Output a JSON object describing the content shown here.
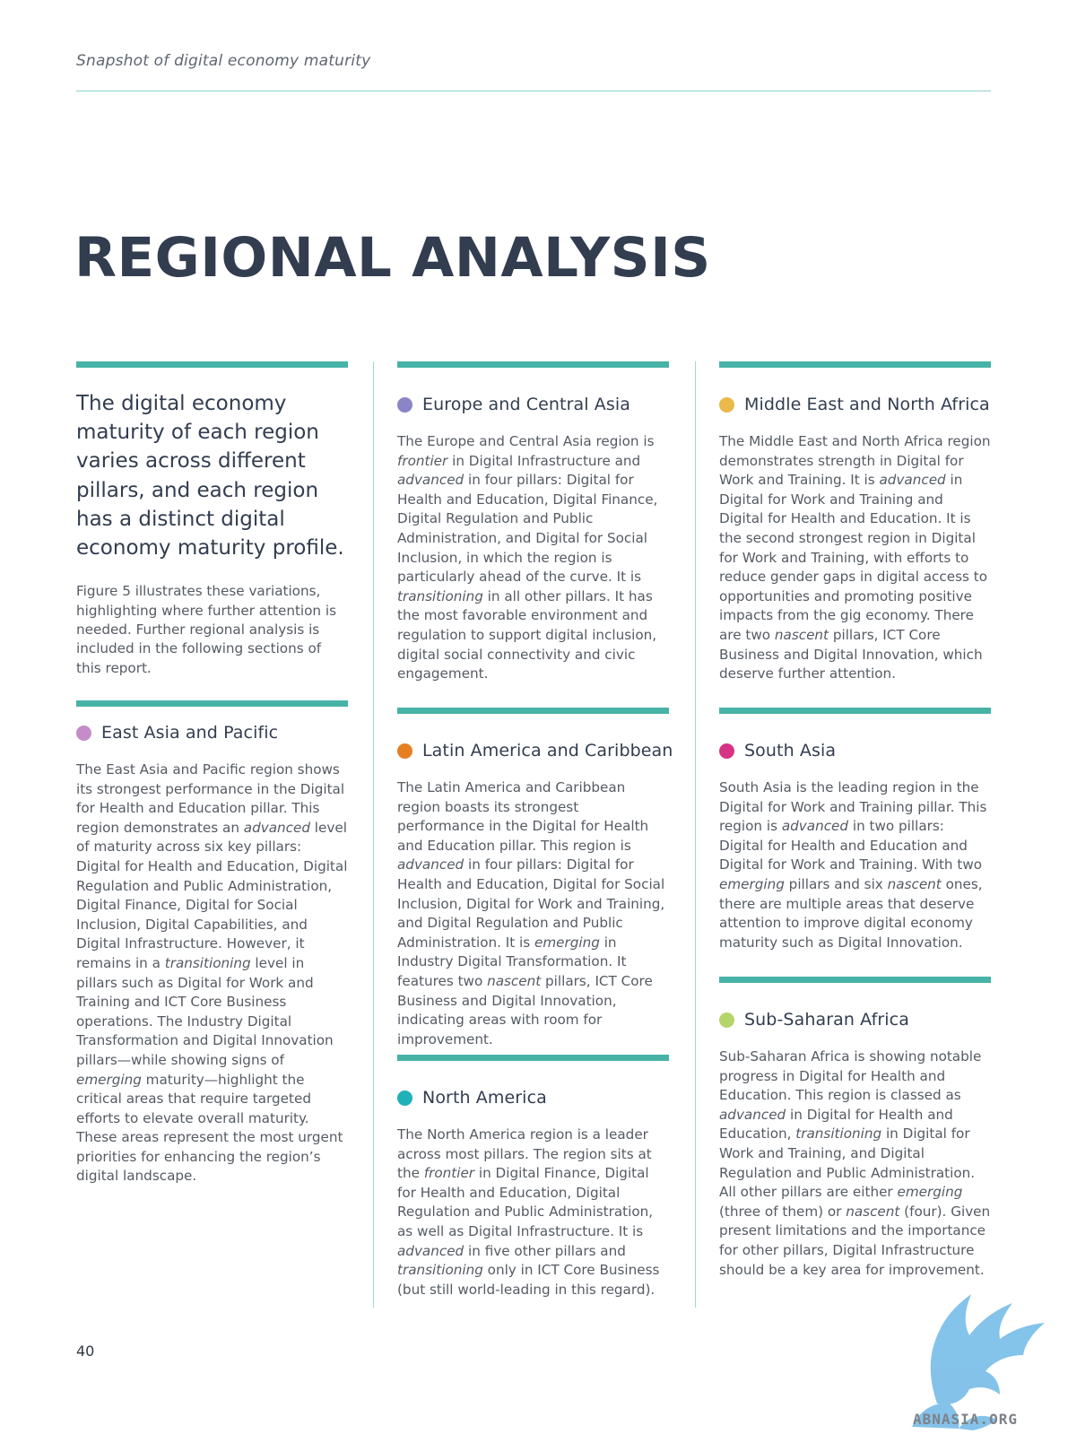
{
  "header": {
    "running_title": "Snapshot of digital economy maturity"
  },
  "page_title": "REGIONAL ANALYSIS",
  "intro": {
    "lead": "The digital economy maturity of each region varies across different pillars, and each region has a distinct digital economy maturity profile.",
    "body": "Figure 5 illustrates these variations, highlighting where further attention is needed. Further regional analysis is included in the following sections of this report."
  },
  "colors": {
    "accent_bar": "#47b3a7",
    "title": "#323d4f",
    "divider": "#9ed8d1"
  },
  "regions": {
    "eap": {
      "name": "East Asia and Pacific",
      "dot_color": "#c48cc9",
      "text": [
        {
          "t": "The East Asia and Pacific region shows its strongest performance in the Digital for Health and Education pillar. This region demonstrates an "
        },
        {
          "t": "advanced",
          "i": true
        },
        {
          "t": " level of maturity across six key pillars: Digital for Health and Education, Digital Regulation and Public Administration, Digital Finance, Digital for Social Inclusion, Digital Capabilities, and Digital Infrastructure. However, it remains in a "
        },
        {
          "t": "transitioning",
          "i": true
        },
        {
          "t": " level in pillars such as Digital for Work and Training and ICT Core Business operations. The Industry Digital Transformation and Digital Innovation pillars—while showing signs of "
        },
        {
          "t": "emerging",
          "i": true
        },
        {
          "t": " maturity—highlight the critical areas that require targeted efforts to elevate overall maturity. These areas represent the most urgent priorities for enhancing the region’s digital landscape."
        }
      ]
    },
    "eca": {
      "name": "Europe and Central Asia",
      "dot_color": "#8b84c6",
      "text": [
        {
          "t": "The Europe and Central Asia region is "
        },
        {
          "t": "frontier",
          "i": true
        },
        {
          "t": " in Digital Infrastructure and "
        },
        {
          "t": "advanced",
          "i": true
        },
        {
          "t": " in four pillars: Digital for Health and Education, Digital Finance, Digital Regulation and Public Administration, and Digital for Social Inclusion, in which the region is particularly ahead of the curve. It is "
        },
        {
          "t": "transitioning",
          "i": true
        },
        {
          "t": " in all other pillars. It has the most favorable environment and regulation to support digital inclusion, digital social connectivity and civic engagement."
        }
      ]
    },
    "lac": {
      "name": "Latin America and Caribbean",
      "dot_color": "#e67e22",
      "text": [
        {
          "t": "The Latin America and Caribbean region boasts its strongest performance in the Digital for Health and Education pillar. This region is "
        },
        {
          "t": "advanced",
          "i": true
        },
        {
          "t": " in four pillars: Digital for Health and Education, Digital for Social Inclusion, Digital for Work and Training, and Digital Regulation and Public Administration. It is "
        },
        {
          "t": "emerging",
          "i": true
        },
        {
          "t": " in Industry Digital Transformation. It features two "
        },
        {
          "t": "nascent",
          "i": true
        },
        {
          "t": " pillars, ICT Core Business and Digital Innovation, indicating areas with room for improvement."
        }
      ]
    },
    "na": {
      "name": "North America",
      "dot_color": "#1fb0b8",
      "text": [
        {
          "t": "The North America region is a leader across most pillars. The region sits at the "
        },
        {
          "t": "frontier",
          "i": true
        },
        {
          "t": " in Digital Finance, Digital for Health and Education, Digital Regulation and Public Administration, as well as Digital Infrastructure. It is "
        },
        {
          "t": "advanced",
          "i": true
        },
        {
          "t": " in five other pillars and "
        },
        {
          "t": "transitioning",
          "i": true
        },
        {
          "t": " only in ICT Core Business (but still world-leading in this regard)."
        }
      ]
    },
    "mena": {
      "name": "Middle East and North Africa",
      "dot_color": "#e9b949",
      "text": [
        {
          "t": "The Middle East and North Africa region demonstrates strength in Digital for Work and Training. It is "
        },
        {
          "t": "advanced",
          "i": true
        },
        {
          "t": " in Digital for Work and Training and Digital for Health and Education. It is the second strongest region in Digital for Work and Training, with efforts to reduce gender gaps in digital access to opportunities and promoting positive impacts from the gig economy. There are two "
        },
        {
          "t": "nascent",
          "i": true
        },
        {
          "t": " pillars, ICT Core Business and Digital Innovation, which deserve further attention."
        }
      ]
    },
    "sa": {
      "name": "South Asia",
      "dot_color": "#d63384",
      "text": [
        {
          "t": "South Asia is the leading region in the Digital for Work and Training pillar. This region is "
        },
        {
          "t": "advanced",
          "i": true
        },
        {
          "t": " in two pillars: Digital for Health and Education and Digital for Work and Training. With two "
        },
        {
          "t": "emerging",
          "i": true
        },
        {
          "t": " pillars and six "
        },
        {
          "t": "nascent",
          "i": true
        },
        {
          "t": " ones, there are multiple areas that deserve attention to improve digital economy maturity such as Digital Innovation."
        }
      ]
    },
    "ssa": {
      "name": "Sub-Saharan Africa",
      "dot_color": "#b5d56a",
      "text": [
        {
          "t": "Sub-Saharan Africa is showing notable progress in Digital for Health and Education. This region is classed as "
        },
        {
          "t": "advanced",
          "i": true
        },
        {
          "t": " in Digital for Health and Education, "
        },
        {
          "t": "transitioning",
          "i": true
        },
        {
          "t": " in Digital for Work and Training, and Digital Regulation and Public Administration. All other pillars are either "
        },
        {
          "t": "emerging",
          "i": true
        },
        {
          "t": " (three of them) or "
        },
        {
          "t": "nascent",
          "i": true
        },
        {
          "t": " (four). Given present limitations and the importance for other pillars, Digital Infrastructure should be a key area for improvement."
        }
      ]
    }
  },
  "page_number": "40",
  "watermark": {
    "text": "ABNASIA.ORG",
    "icon": "griffin-icon"
  }
}
